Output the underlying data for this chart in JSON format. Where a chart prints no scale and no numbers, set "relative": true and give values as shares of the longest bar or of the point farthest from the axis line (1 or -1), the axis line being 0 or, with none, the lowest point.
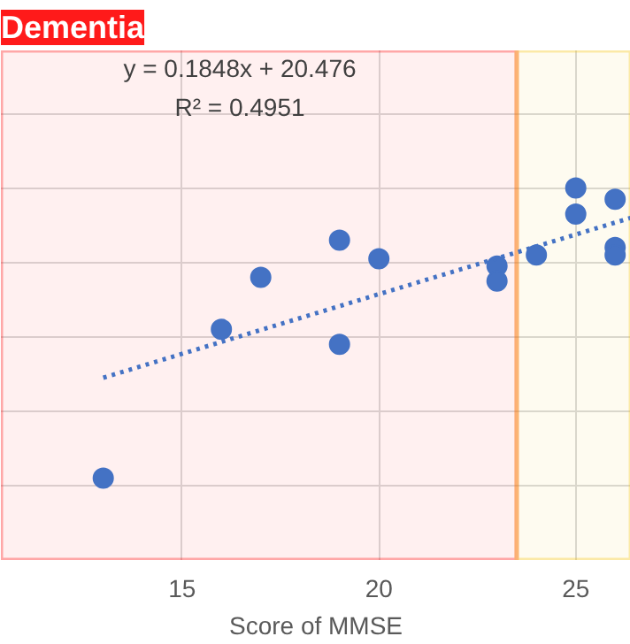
{
  "chart_data": {
    "type": "scatter",
    "title": "Dementia",
    "xlabel": "Score of MMSE",
    "relative": true,
    "xlim": [
      10.4,
      26.4
    ],
    "xticks": [
      15,
      20,
      25
    ],
    "grid": true,
    "marker": "circle",
    "annotations": [
      "y = 0.1848x + 20.476",
      "R² = 0.4951"
    ],
    "bands": [
      {
        "axis": "x",
        "from": 10.4,
        "to": 23.5,
        "color": "#ff0000"
      },
      {
        "axis": "x",
        "from": 23.5,
        "to": 26.4,
        "color": "#f5c000"
      }
    ],
    "series": [
      {
        "color": "#4472c4",
        "x": [
          13,
          16,
          17,
          19,
          19,
          20,
          23,
          23,
          24,
          25,
          25,
          26,
          26,
          26
        ],
        "values": [
          0.22,
          0.62,
          0.76,
          0.86,
          0.58,
          0.81,
          0.79,
          0.75,
          0.82,
          1.0,
          0.93,
          0.97,
          0.84,
          0.82
        ]
      },
      {
        "type": "line",
        "color": "#4472c4",
        "line_style": "dotted",
        "marker": "none",
        "x": [
          13,
          26.4
        ],
        "values": [
          0.49,
          0.92
        ]
      }
    ]
  }
}
